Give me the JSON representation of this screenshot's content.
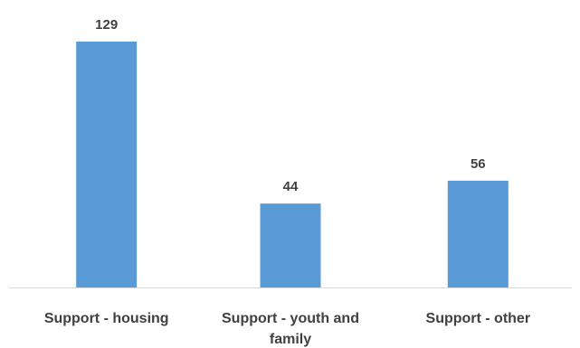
{
  "chart_data": {
    "type": "bar",
    "title": "",
    "xlabel": "",
    "ylabel": "",
    "categories": [
      "Support - housing",
      "Support - youth and family",
      "Support - other"
    ],
    "category_lines": [
      [
        "Support - housing"
      ],
      [
        "Support - youth and family"
      ],
      [
        "Support - other"
      ]
    ],
    "values": [
      129,
      44,
      56
    ],
    "data_labels": [
      "129",
      "44",
      "56"
    ],
    "ylim": [
      0,
      140
    ],
    "grid": false,
    "legend": "none",
    "bar_color": "#5B9BD5",
    "axis_color": "#D9D9D9",
    "text_color": "#404040"
  }
}
